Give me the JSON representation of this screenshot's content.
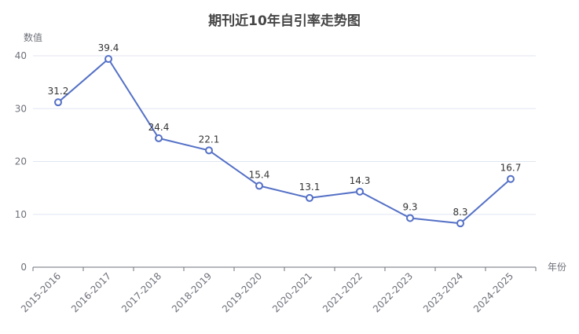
{
  "chart_data": {
    "type": "line",
    "title": "期刊近10年自引率走势图",
    "xlabel": "年份",
    "ylabel": "数值",
    "ylim": [
      0,
      40
    ],
    "yticks": [
      0,
      10,
      20,
      30,
      40
    ],
    "grid": true,
    "legend": "none",
    "categories": [
      "2015-2016",
      "2016-2017",
      "2017-2018",
      "2018-2019",
      "2019-2020",
      "2020-2021",
      "2021-2022",
      "2022-2023",
      "2023-2024",
      "2024-2025"
    ],
    "series": [
      {
        "values": [
          31.2,
          39.4,
          24.4,
          22.1,
          15.4,
          13.1,
          14.3,
          9.3,
          8.3,
          16.7
        ],
        "color": "#5470c6"
      }
    ]
  }
}
